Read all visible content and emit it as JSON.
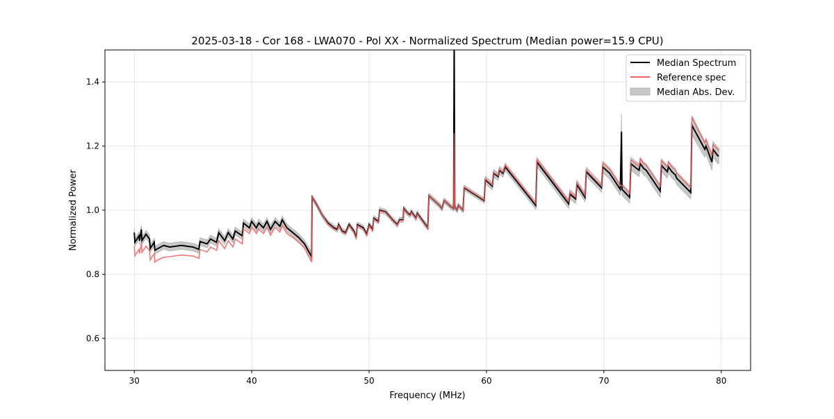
{
  "chart_data": {
    "type": "line",
    "title": "2025-03-18 - Cor 168 - LWA070 - Pol XX - Normalized Spectrum (Median power=15.9 CPU)",
    "xlabel": "Frequency (MHz)",
    "ylabel": "Normalized Power",
    "xlim": [
      27.5,
      82.5
    ],
    "ylim": [
      0.5,
      1.5
    ],
    "xticks": [
      30,
      40,
      50,
      60,
      70,
      80
    ],
    "xtick_labels": [
      "30",
      "40",
      "50",
      "60",
      "70",
      "80"
    ],
    "yticks": [
      0.6,
      0.8,
      1.0,
      1.2,
      1.4
    ],
    "ytick_labels": [
      "0.6",
      "0.8",
      "1.0",
      "1.2",
      "1.4"
    ],
    "grid": true,
    "legend_position": "top-right",
    "legend": [
      "Median Spectrum",
      "Reference spec",
      "Median Abs. Dev."
    ],
    "colors": {
      "median": "#000000",
      "reference": "#f06060",
      "mad": "#c8c8c8",
      "overlap": "#8b0000"
    },
    "point_fields": [
      "frequency_mhz",
      "median",
      "reference",
      "mad"
    ],
    "points": [
      [
        30,
        0.93,
        0.888,
        0.012
      ],
      [
        30.05,
        0.9,
        0.858,
        0.012
      ],
      [
        30.4,
        0.92,
        0.878,
        0.012
      ],
      [
        30.45,
        0.905,
        0.865,
        0.012
      ],
      [
        30.6,
        0.94,
        0.898,
        0.012
      ],
      [
        30.65,
        0.905,
        0.868,
        0.012
      ],
      [
        31,
        0.925,
        0.888,
        0.012
      ],
      [
        31.3,
        0.91,
        0.873,
        0.012
      ],
      [
        31.35,
        0.88,
        0.845,
        0.012
      ],
      [
        31.7,
        0.9,
        0.865,
        0.012
      ],
      [
        31.75,
        0.875,
        0.838,
        0.012
      ],
      [
        32,
        0.88,
        0.845,
        0.012
      ],
      [
        32.5,
        0.89,
        0.853,
        0.012
      ],
      [
        33,
        0.885,
        0.855,
        0.012
      ],
      [
        34,
        0.89,
        0.86,
        0.012
      ],
      [
        35,
        0.885,
        0.857,
        0.012
      ],
      [
        35.5,
        0.878,
        0.85,
        0.012
      ],
      [
        35.6,
        0.902,
        0.877,
        0.012
      ],
      [
        36.2,
        0.895,
        0.87,
        0.012
      ],
      [
        36.5,
        0.91,
        0.885,
        0.012
      ],
      [
        37,
        0.9,
        0.875,
        0.012
      ],
      [
        37.2,
        0.93,
        0.905,
        0.012
      ],
      [
        37.7,
        0.905,
        0.88,
        0.012
      ],
      [
        38,
        0.93,
        0.905,
        0.012
      ],
      [
        38.4,
        0.91,
        0.885,
        0.012
      ],
      [
        38.6,
        0.935,
        0.91,
        0.012
      ],
      [
        39.2,
        0.92,
        0.895,
        0.012
      ],
      [
        39.3,
        0.96,
        0.942,
        0.012
      ],
      [
        39.8,
        0.945,
        0.927,
        0.012
      ],
      [
        40,
        0.965,
        0.947,
        0.012
      ],
      [
        40.4,
        0.945,
        0.927,
        0.012
      ],
      [
        40.6,
        0.96,
        0.942,
        0.012
      ],
      [
        41,
        0.945,
        0.927,
        0.012
      ],
      [
        41.3,
        0.965,
        0.947,
        0.012
      ],
      [
        41.6,
        0.94,
        0.922,
        0.012
      ],
      [
        42,
        0.965,
        0.947,
        0.012
      ],
      [
        42.4,
        0.95,
        0.932,
        0.012
      ],
      [
        42.6,
        0.97,
        0.952,
        0.012
      ],
      [
        43,
        0.945,
        0.927,
        0.012
      ],
      [
        43.5,
        0.93,
        0.915,
        0.012
      ],
      [
        44,
        0.915,
        0.9,
        0.012
      ],
      [
        44.5,
        0.895,
        0.882,
        0.012
      ],
      [
        45.1,
        0.855,
        0.838,
        0.015
      ],
      [
        45.15,
        1.04,
        1.04,
        0.008
      ],
      [
        45.5,
        1.02,
        1.02,
        0.008
      ],
      [
        46,
        0.985,
        0.985,
        0.008
      ],
      [
        46.5,
        0.96,
        0.957,
        0.008
      ],
      [
        47,
        0.945,
        0.942,
        0.008
      ],
      [
        47.3,
        0.94,
        0.937,
        0.008
      ],
      [
        47.4,
        0.955,
        0.952,
        0.008
      ],
      [
        47.7,
        0.935,
        0.932,
        0.008
      ],
      [
        48,
        0.93,
        0.927,
        0.008
      ],
      [
        48.3,
        0.955,
        0.952,
        0.008
      ],
      [
        48.7,
        0.935,
        0.932,
        0.008
      ],
      [
        48.9,
        0.915,
        0.912,
        0.008
      ],
      [
        49,
        0.955,
        0.952,
        0.008
      ],
      [
        49.5,
        0.945,
        0.942,
        0.008
      ],
      [
        49.8,
        0.925,
        0.922,
        0.008
      ],
      [
        50,
        0.955,
        0.952,
        0.008
      ],
      [
        50.3,
        0.94,
        0.937,
        0.008
      ],
      [
        50.4,
        0.975,
        0.972,
        0.008
      ],
      [
        50.8,
        0.965,
        0.962,
        0.008
      ],
      [
        50.9,
        1.0,
        0.998,
        0.008
      ],
      [
        51.4,
        0.995,
        0.993,
        0.008
      ],
      [
        52,
        0.97,
        0.968,
        0.008
      ],
      [
        52.4,
        0.955,
        0.953,
        0.008
      ],
      [
        52.6,
        0.97,
        0.968,
        0.008
      ],
      [
        52.9,
        0.97,
        0.968,
        0.008
      ],
      [
        52.95,
        1.005,
        1.003,
        0.008
      ],
      [
        53.3,
        0.99,
        0.988,
        0.008
      ],
      [
        53.5,
        0.985,
        0.983,
        0.008
      ],
      [
        53.6,
        0.995,
        0.993,
        0.008
      ],
      [
        54,
        0.975,
        0.973,
        0.008
      ],
      [
        54.1,
        0.99,
        0.988,
        0.008
      ],
      [
        55,
        0.945,
        0.943,
        0.008
      ],
      [
        55.1,
        1.045,
        1.045,
        0.008
      ],
      [
        56,
        1.015,
        1.015,
        0.008
      ],
      [
        56.2,
        1.005,
        1.005,
        0.008
      ],
      [
        56.4,
        1.03,
        1.03,
        0.008
      ],
      [
        57,
        1.01,
        1.01,
        0.008
      ],
      [
        57.2,
        1.005,
        1.005,
        0.008
      ],
      [
        57.25,
        1.55,
        1.24,
        0.01
      ],
      [
        57.3,
        1.01,
        1.01,
        0.008
      ],
      [
        57.5,
        1.0,
        1.0,
        0.008
      ],
      [
        57.6,
        1.015,
        1.015,
        0.008
      ],
      [
        58,
        1.0,
        1.0,
        0.008
      ],
      [
        58.1,
        1.07,
        1.072,
        0.008
      ],
      [
        59.8,
        1.03,
        1.032,
        0.008
      ],
      [
        59.9,
        1.095,
        1.098,
        0.012
      ],
      [
        60.5,
        1.075,
        1.078,
        0.012
      ],
      [
        60.6,
        1.115,
        1.118,
        0.012
      ],
      [
        61,
        1.105,
        1.108,
        0.012
      ],
      [
        61.1,
        1.125,
        1.128,
        0.012
      ],
      [
        61.4,
        1.115,
        1.118,
        0.012
      ],
      [
        61.6,
        1.135,
        1.14,
        0.012
      ],
      [
        64.2,
        1.015,
        1.02,
        0.012
      ],
      [
        64.3,
        1.15,
        1.158,
        0.014
      ],
      [
        67,
        1.02,
        1.028,
        0.014
      ],
      [
        67.1,
        1.05,
        1.056,
        0.014
      ],
      [
        67.6,
        1.035,
        1.041,
        0.014
      ],
      [
        67.7,
        1.08,
        1.086,
        0.014
      ],
      [
        68.4,
        1.04,
        1.046,
        0.014
      ],
      [
        68.5,
        1.12,
        1.125,
        0.014
      ],
      [
        69.8,
        1.07,
        1.075,
        0.014
      ],
      [
        69.9,
        1.135,
        1.147,
        0.018
      ],
      [
        70.5,
        1.115,
        1.127,
        0.018
      ],
      [
        71.4,
        1.065,
        1.077,
        0.018
      ],
      [
        71.5,
        1.245,
        1.077,
        0.055
      ],
      [
        71.55,
        1.065,
        1.077,
        0.018
      ],
      [
        72.2,
        1.04,
        1.052,
        0.018
      ],
      [
        72.3,
        1.145,
        1.157,
        0.02
      ],
      [
        72.8,
        1.13,
        1.142,
        0.02
      ],
      [
        73,
        1.125,
        1.137,
        0.02
      ],
      [
        73.1,
        1.145,
        1.16,
        0.02
      ],
      [
        73.4,
        1.13,
        1.145,
        0.02
      ],
      [
        73.6,
        1.125,
        1.14,
        0.02
      ],
      [
        74.8,
        1.06,
        1.075,
        0.02
      ],
      [
        74.9,
        1.14,
        1.155,
        0.02
      ],
      [
        75.4,
        1.12,
        1.135,
        0.02
      ],
      [
        75.5,
        1.135,
        1.15,
        0.02
      ],
      [
        75.8,
        1.12,
        1.135,
        0.02
      ],
      [
        76.1,
        1.11,
        1.125,
        0.02
      ],
      [
        76.2,
        1.1,
        1.115,
        0.02
      ],
      [
        77.4,
        1.055,
        1.07,
        0.02
      ],
      [
        77.5,
        1.265,
        1.29,
        0.03
      ],
      [
        78.6,
        1.19,
        1.21,
        0.025
      ],
      [
        78.7,
        1.2,
        1.22,
        0.025
      ],
      [
        79.2,
        1.15,
        1.17,
        0.025
      ],
      [
        79.3,
        1.19,
        1.205,
        0.025
      ],
      [
        79.7,
        1.17,
        1.19,
        0.025
      ],
      [
        79.8,
        1.17,
        1.185,
        0.025
      ]
    ]
  }
}
